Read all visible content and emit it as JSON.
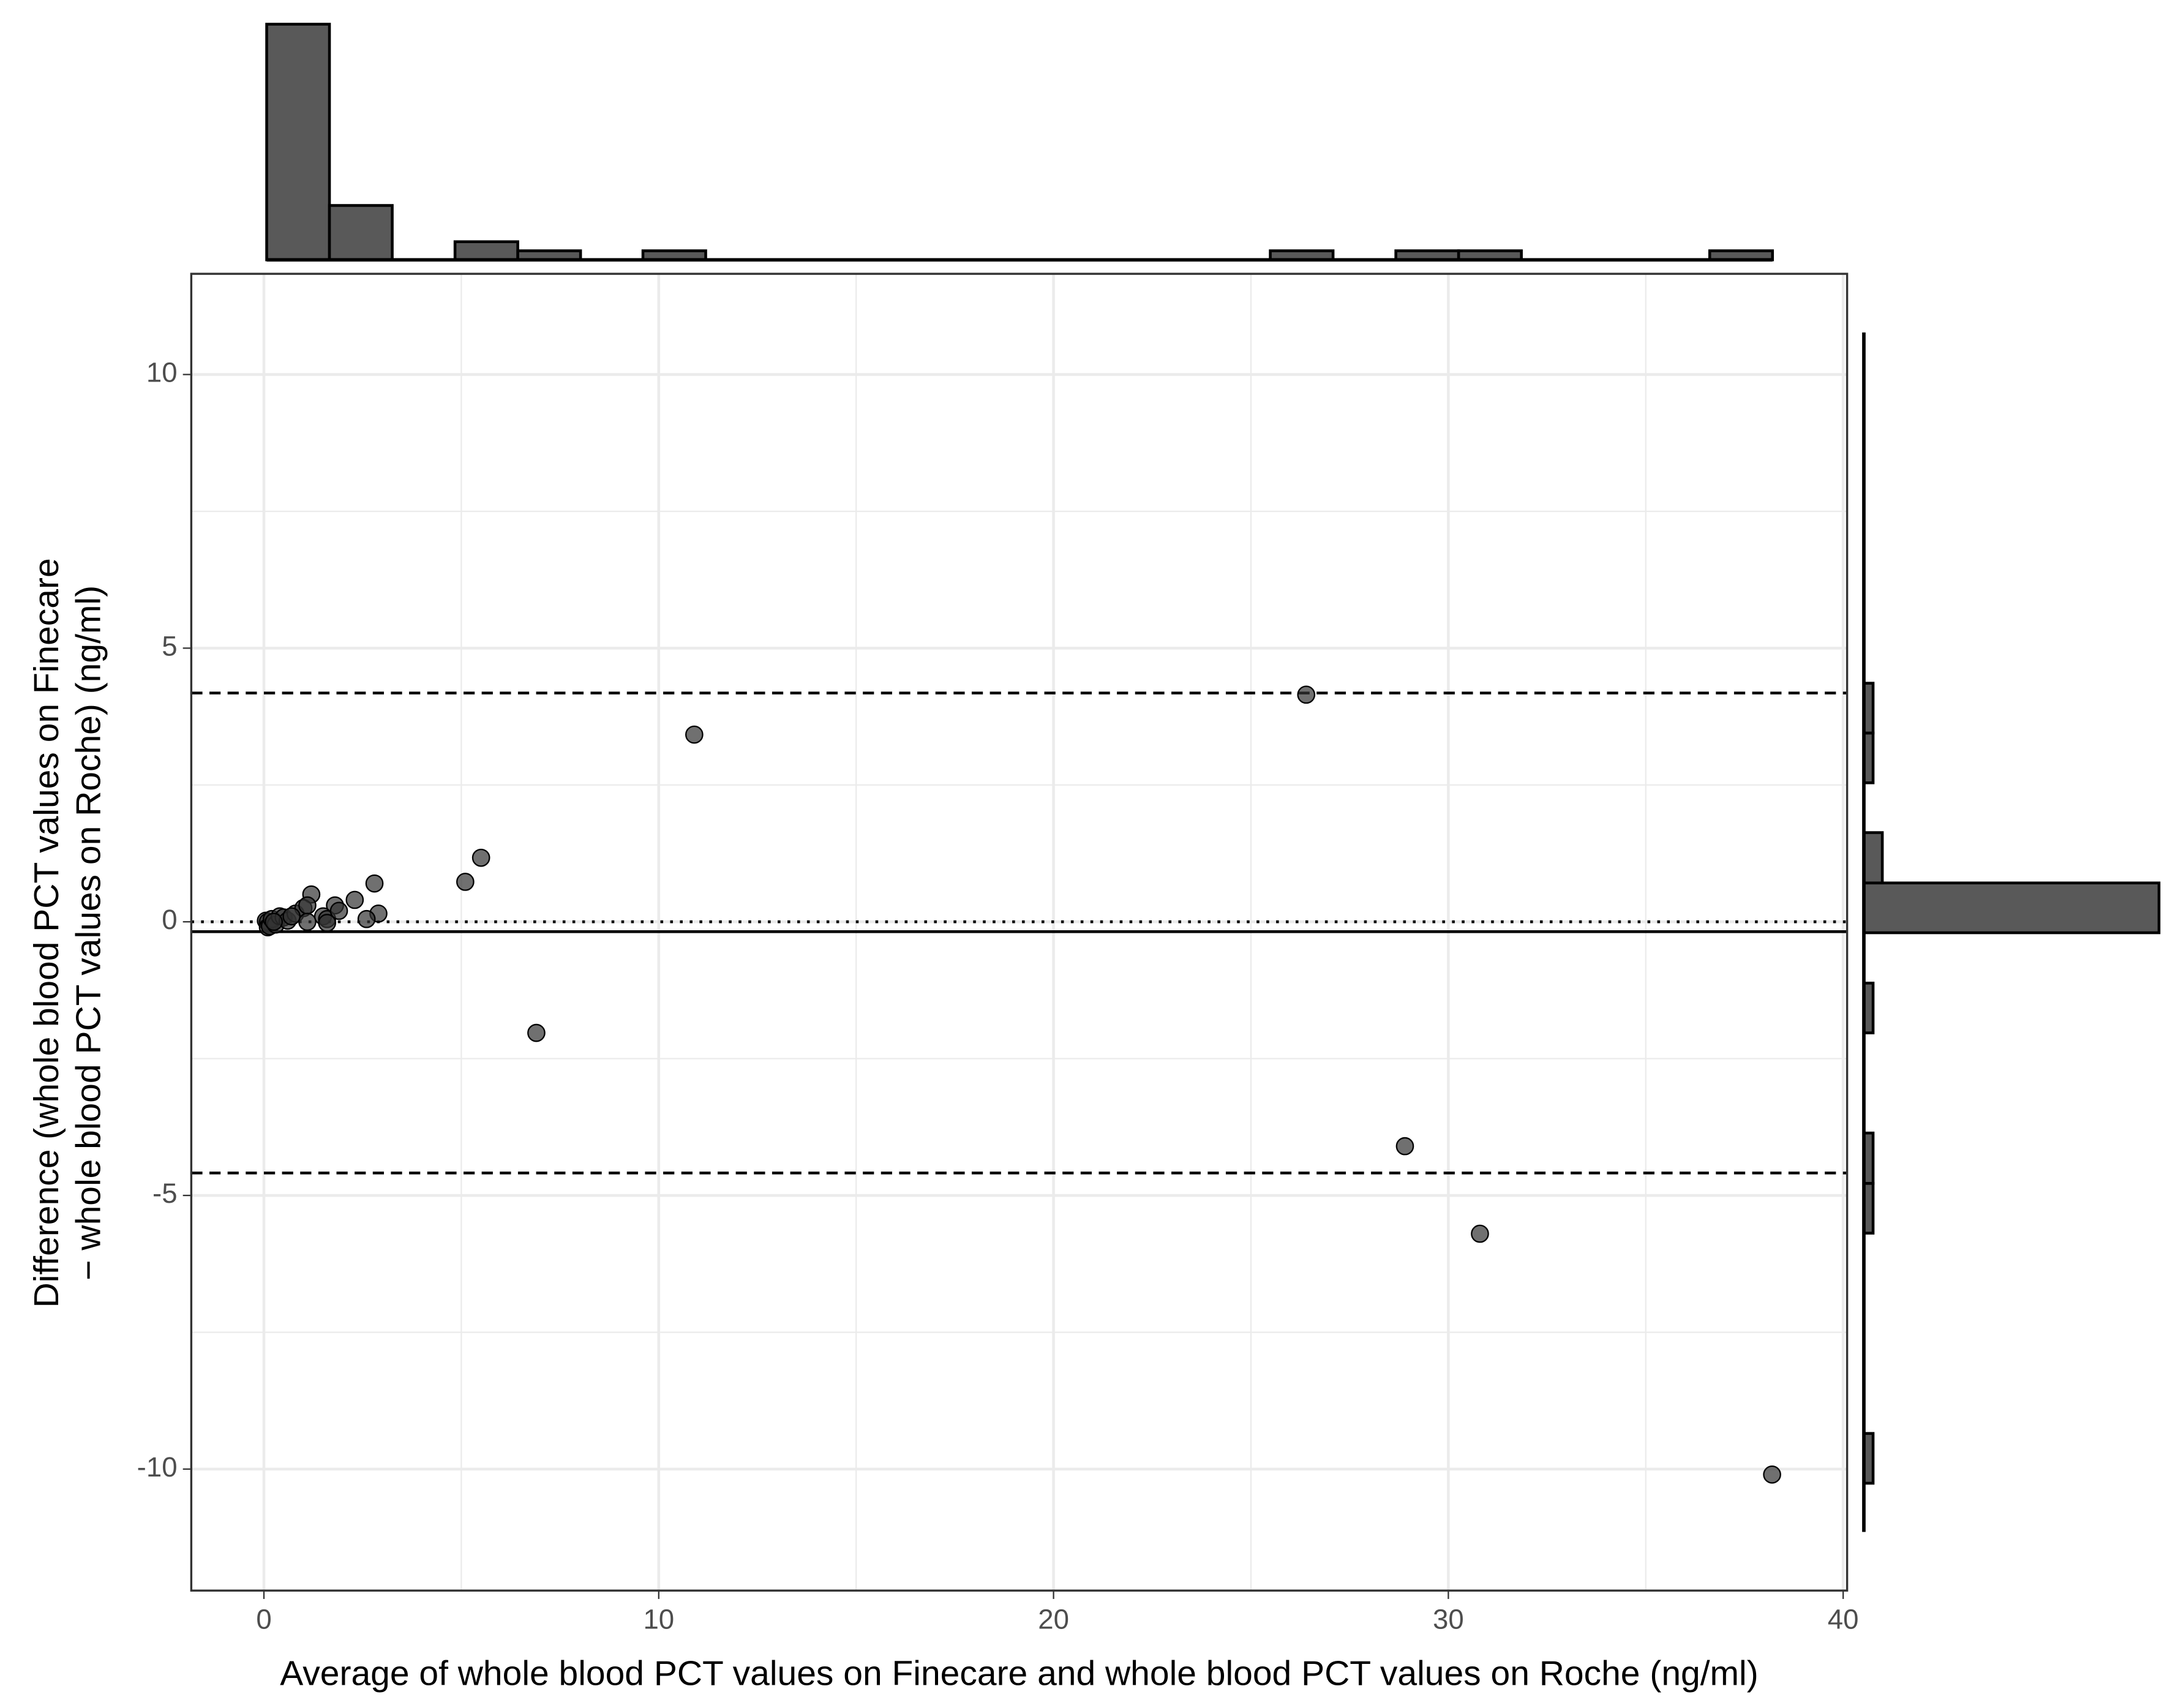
{
  "chart_data": [
    {
      "type": "scatter",
      "xlabel": "Average of whole blood PCT values on Finecare and whole blood PCT values on Roche (ng/ml)",
      "ylabel": [
        "Difference (whole blood PCT values on Finecare",
        "− whole blood PCT values on Roche) (ng/ml)"
      ],
      "x": [
        26.4,
        10.9,
        5.5,
        5.1,
        2.8,
        2.3,
        1.8,
        1.2,
        2.9,
        2.6,
        6.9,
        28.9,
        30.8,
        38.2,
        0.05,
        0.1,
        0.1,
        0.15,
        0.2,
        0.3,
        0.4,
        0.5,
        0.6,
        0.8,
        1.0,
        1.1,
        1.1,
        1.5,
        1.6,
        1.6,
        1.9,
        0.25,
        0.7
      ],
      "values": [
        4.15,
        3.42,
        1.17,
        0.73,
        0.7,
        0.4,
        0.3,
        0.5,
        0.15,
        0.05,
        -2.03,
        -4.1,
        -5.7,
        -10.1,
        0.02,
        0,
        -0.1,
        -0.08,
        0.05,
        -0.05,
        0.1,
        0.08,
        0.02,
        0.15,
        0.25,
        0.3,
        0.0,
        0.1,
        0.05,
        -0.02,
        0.2,
        0.0,
        0.1
      ],
      "color": "#333333",
      "xlim": [
        -1.84,
        40.1
      ],
      "ylim": [
        -12.22,
        11.84
      ],
      "xticks": [
        0,
        10,
        20,
        30,
        40
      ],
      "yticks": [
        -10,
        -5,
        0,
        5,
        10
      ],
      "x_minor": [
        5,
        15,
        25,
        35
      ],
      "y_minor": [
        -7.5,
        -2.5,
        2.5,
        7.5
      ],
      "grid": true,
      "hlines": [
        {
          "value": 4.18,
          "style": "dashed"
        },
        {
          "value": 0,
          "style": "dotted"
        },
        {
          "value": -0.18,
          "style": "solid"
        },
        {
          "value": -4.59,
          "style": "dashed"
        }
      ]
    },
    {
      "type": "histogram",
      "orientation": "vertical",
      "color": "#595959",
      "bins": [
        0.07,
        1.66,
        3.25,
        4.84,
        6.43,
        8.02,
        9.6,
        11.19,
        12.78,
        14.37,
        15.96,
        17.55,
        19.14,
        20.73,
        22.32,
        23.91,
        25.49,
        27.08,
        28.67,
        30.26,
        31.85,
        33.44,
        35.03,
        36.62,
        38.21
      ],
      "counts": [
        26,
        6,
        0,
        2,
        1,
        0,
        1,
        0,
        0,
        0,
        0,
        0,
        0,
        0,
        0,
        0,
        1,
        0,
        1,
        1,
        0,
        0,
        0,
        1
      ],
      "xlim": [
        -1.84,
        40.1
      ],
      "ylim": [
        0,
        26.5
      ]
    },
    {
      "type": "histogram",
      "orientation": "horizontal",
      "color": "#595959",
      "bins": [
        -10.26,
        -9.35,
        -8.43,
        -7.52,
        -6.6,
        -5.69,
        -4.78,
        -3.86,
        -2.95,
        -2.03,
        -1.12,
        -0.2,
        0.71,
        1.63,
        2.54,
        3.45,
        4.36
      ],
      "counts": [
        1,
        0,
        0,
        0,
        0,
        1,
        1,
        0,
        0,
        1,
        0,
        32,
        2,
        0,
        1,
        1
      ],
      "ylim": [
        -11.15,
        10.77
      ],
      "xlim": [
        0,
        33
      ]
    }
  ]
}
